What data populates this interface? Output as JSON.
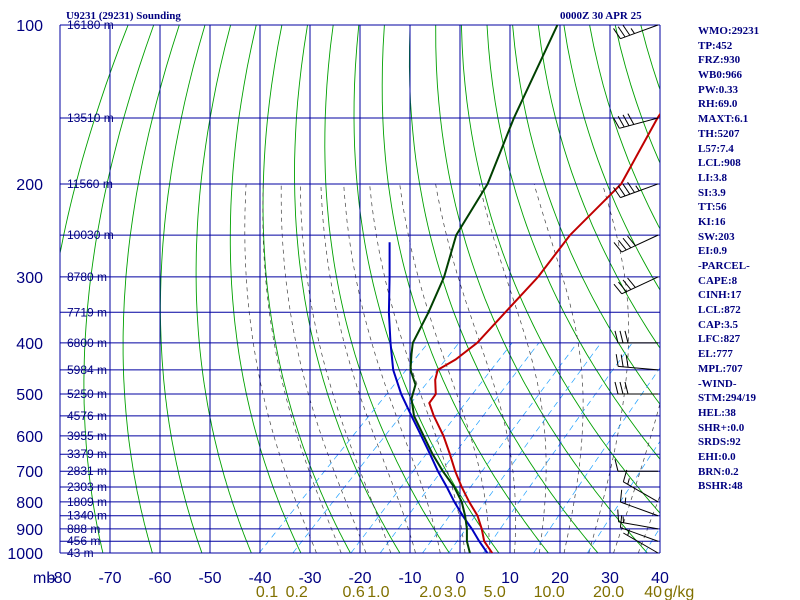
{
  "header": {
    "title_left": "U9231 (29231) Sounding",
    "title_right": "0000Z 30 APR 25"
  },
  "indices": [
    "WMO:29231",
    "TP:452",
    "FRZ:930",
    "WB0:966",
    "PW:0.33",
    "RH:69.0",
    "MAXT:6.1",
    "TH:5207",
    "L57:7.4",
    "LCL:908",
    "LI:3.8",
    "SI:3.9",
    "TT:56",
    "KI:16",
    "SW:203",
    "EI:0.9",
    "-PARCEL-",
    "CAPE:8",
    "CINH:17",
    "LCL:872",
    "CAP:3.5",
    "LFC:827",
    "EL:777",
    "MPL:707",
    "-WIND-",
    "STM:294/19",
    "HEL:38",
    "SHR+:0.0",
    "SRDS:92",
    "EHI:0.0",
    "BRN:0.2",
    "BSHR:48"
  ],
  "colors": {
    "grid": "#0000a0",
    "axis_label": "#000080",
    "dry_adiabat": "#00a000",
    "moist_adiabat": "#404040",
    "mixing_ratio": "#20a0ff",
    "temperature": "#c00000",
    "dewpoint": "#004000",
    "parcel": "#0000c0",
    "mixing_label": "#807000",
    "wind_barb": "#000000"
  },
  "chart_data": {
    "type": "skew-t",
    "pressure_axis_unit": "mb",
    "pressure_ticks": [
      100,
      200,
      300,
      400,
      500,
      600,
      700,
      800,
      900,
      1000
    ],
    "temperature_ticks": [
      -80,
      -70,
      -60,
      -50,
      -40,
      -30,
      -20,
      -10,
      0,
      10,
      20,
      30,
      40
    ],
    "temperature_labels": [
      "-80",
      "-70",
      "-60",
      "-50",
      "-40",
      "-30",
      "-20",
      "-10",
      "0",
      "10",
      "20",
      "30",
      "40"
    ],
    "mixing_ratio_unit": "g/kg",
    "mixing_ratio_labels": [
      {
        "text": "0.1",
        "t": -40
      },
      {
        "text": "0.2",
        "t": -34
      },
      {
        "text": "0.6",
        "t": -22.5
      },
      {
        "text": "1.0",
        "t": -17.5
      },
      {
        "text": "2.0",
        "t": -7
      },
      {
        "text": "3.0",
        "t": -2
      },
      {
        "text": "5.0",
        "t": 6
      },
      {
        "text": "10.0",
        "t": 17
      },
      {
        "text": "20.0",
        "t": 29
      },
      {
        "text": "40",
        "t": 38
      }
    ],
    "heights": [
      {
        "p": 100,
        "label": "16180 m"
      },
      {
        "p": 150,
        "label": "13510 m"
      },
      {
        "p": 200,
        "label": "11560 m"
      },
      {
        "p": 250,
        "label": "10030 m"
      },
      {
        "p": 300,
        "label": "8780 m"
      },
      {
        "p": 350,
        "label": "7719 m"
      },
      {
        "p": 400,
        "label": "6800 m"
      },
      {
        "p": 450,
        "label": "5984 m"
      },
      {
        "p": 500,
        "label": "5250 m"
      },
      {
        "p": 550,
        "label": "4576 m"
      },
      {
        "p": 600,
        "label": "3955 m"
      },
      {
        "p": 650,
        "label": "3379 m"
      },
      {
        "p": 700,
        "label": "2831 m"
      },
      {
        "p": 750,
        "label": "2303 m"
      },
      {
        "p": 800,
        "label": "1809 m"
      },
      {
        "p": 850,
        "label": "1340 m"
      },
      {
        "p": 900,
        "label": "888 m"
      },
      {
        "p": 950,
        "label": "456 m"
      },
      {
        "p": 1000,
        "label": "43 m"
      }
    ],
    "temperature_profile": [
      [
        1000,
        5.5
      ],
      [
        950,
        1.5
      ],
      [
        900,
        -1.5
      ],
      [
        850,
        -5
      ],
      [
        800,
        -9.5
      ],
      [
        750,
        -14
      ],
      [
        700,
        -18.5
      ],
      [
        650,
        -23
      ],
      [
        600,
        -28
      ],
      [
        550,
        -34
      ],
      [
        520,
        -37.5
      ],
      [
        500,
        -38
      ],
      [
        470,
        -41
      ],
      [
        450,
        -42.5
      ],
      [
        430,
        -41
      ],
      [
        400,
        -40
      ],
      [
        350,
        -40.5
      ],
      [
        300,
        -41
      ],
      [
        250,
        -43
      ],
      [
        200,
        -43
      ],
      [
        150,
        -49
      ],
      [
        100,
        -55
      ]
    ],
    "dewpoint_profile": [
      [
        1000,
        1
      ],
      [
        950,
        -2
      ],
      [
        900,
        -4.5
      ],
      [
        850,
        -7.5
      ],
      [
        800,
        -11
      ],
      [
        750,
        -15.5
      ],
      [
        700,
        -21
      ],
      [
        650,
        -26.5
      ],
      [
        600,
        -32
      ],
      [
        550,
        -38
      ],
      [
        510,
        -42
      ],
      [
        480,
        -44
      ],
      [
        450,
        -48
      ],
      [
        420,
        -51
      ],
      [
        400,
        -53
      ],
      [
        350,
        -56
      ],
      [
        300,
        -60
      ],
      [
        250,
        -66
      ],
      [
        200,
        -70
      ],
      [
        150,
        -78
      ],
      [
        100,
        -88
      ]
    ],
    "parcel_path": [
      [
        1000,
        4.5
      ],
      [
        950,
        0.5
      ],
      [
        900,
        -3.5
      ],
      [
        872,
        -6
      ],
      [
        850,
        -8
      ],
      [
        800,
        -12.5
      ],
      [
        750,
        -17
      ],
      [
        700,
        -22
      ],
      [
        650,
        -27
      ],
      [
        600,
        -32.5
      ],
      [
        550,
        -38.5
      ],
      [
        500,
        -45
      ],
      [
        450,
        -51.5
      ],
      [
        400,
        -57.5
      ],
      [
        350,
        -64
      ],
      [
        300,
        -71
      ],
      [
        258,
        -78
      ]
    ],
    "winds": [
      {
        "p": 100,
        "dir": 250,
        "spd": 35
      },
      {
        "p": 150,
        "dir": 255,
        "spd": 40
      },
      {
        "p": 200,
        "dir": 250,
        "spd": 45
      },
      {
        "p": 250,
        "dir": 245,
        "spd": 40
      },
      {
        "p": 300,
        "dir": 245,
        "spd": 40
      },
      {
        "p": 400,
        "dir": 270,
        "spd": 30
      },
      {
        "p": 450,
        "dir": 275,
        "spd": 30
      },
      {
        "p": 500,
        "dir": 270,
        "spd": 30
      },
      {
        "p": 700,
        "dir": 270,
        "spd": 10
      },
      {
        "p": 800,
        "dir": 300,
        "spd": 15
      },
      {
        "p": 850,
        "dir": 290,
        "spd": 15
      },
      {
        "p": 900,
        "dir": 280,
        "spd": 15
      },
      {
        "p": 950,
        "dir": 290,
        "spd": 10
      },
      {
        "p": 1000,
        "dir": 300,
        "spd": 5
      }
    ]
  }
}
